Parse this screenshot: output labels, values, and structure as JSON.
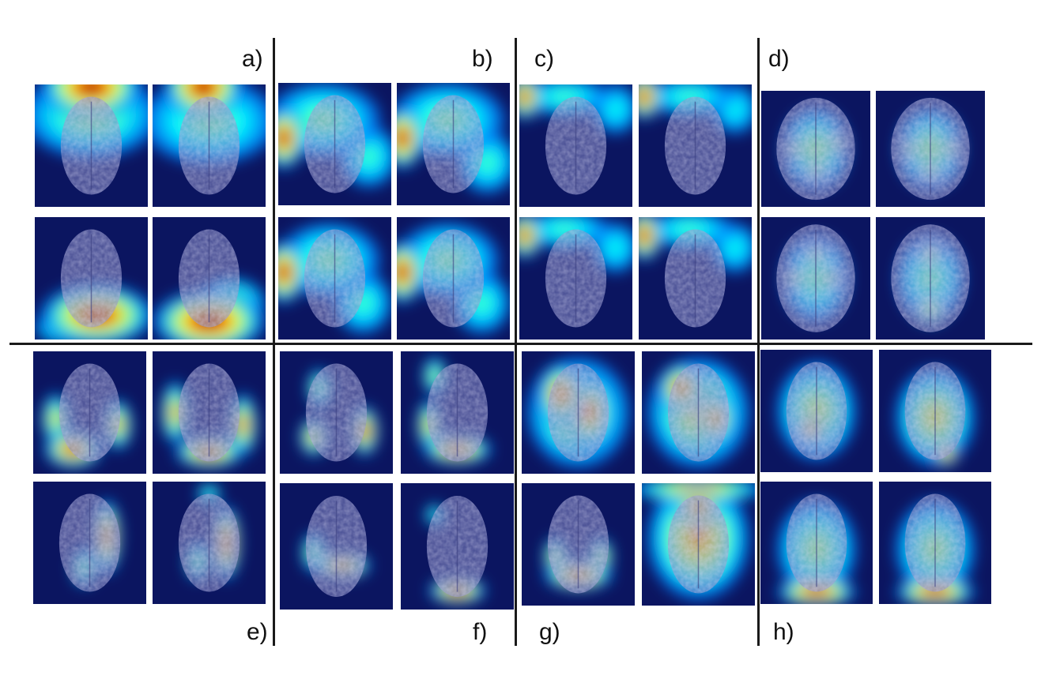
{
  "figure": {
    "panel_labels": [
      "a)",
      "b)",
      "c)",
      "d)",
      "e)",
      "f)",
      "g)",
      "h)"
    ],
    "description_tiles": "Grid of axial brain MRI slices with heatmap saliency overlays",
    "colors": {
      "background": "#ffffff",
      "divider": "#1a1a1a",
      "heatmap_low": "#0b1560",
      "heatmap_mid": "#38c0c8",
      "heatmap_high": "#c01e10"
    },
    "colormap": "jet"
  }
}
